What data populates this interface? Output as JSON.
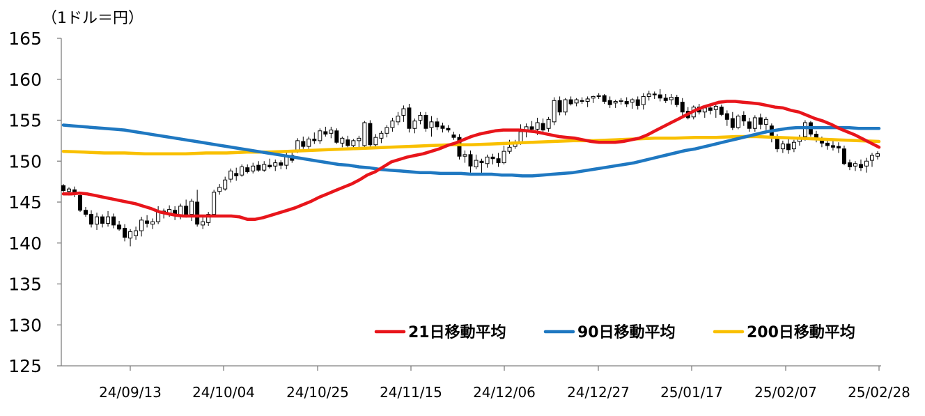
{
  "chart_data": {
    "type": "line",
    "unit_label": "（1ドル＝円）",
    "ylim": [
      125,
      165
    ],
    "yticks": [
      125,
      130,
      135,
      140,
      145,
      150,
      155,
      160,
      165
    ],
    "xlabels": [
      "24/09/13",
      "24/10/04",
      "24/10/25",
      "24/11/15",
      "24/12/06",
      "24/12/27",
      "25/01/17",
      "25/02/07",
      "25/02/28"
    ],
    "series": [
      {
        "name": "21日移動平均",
        "color": "#e8151b",
        "values": [
          146.0,
          146.0,
          146.1,
          146.0,
          145.8,
          145.6,
          145.4,
          145.2,
          145.0,
          144.8,
          144.5,
          144.2,
          143.8,
          143.6,
          143.4,
          143.3,
          143.3,
          143.3,
          143.3,
          143.3,
          143.3,
          143.3,
          143.2,
          142.9,
          142.9,
          143.1,
          143.4,
          143.7,
          144.0,
          144.3,
          144.7,
          145.1,
          145.6,
          146.0,
          146.4,
          146.8,
          147.2,
          147.7,
          148.3,
          148.7,
          149.3,
          149.9,
          150.2,
          150.5,
          150.7,
          150.9,
          151.2,
          151.5,
          151.9,
          152.2,
          152.6,
          153.0,
          153.3,
          153.5,
          153.7,
          153.8,
          153.8,
          153.8,
          153.7,
          153.6,
          153.4,
          153.2,
          153.0,
          152.9,
          152.8,
          152.6,
          152.4,
          152.3,
          152.3,
          152.3,
          152.4,
          152.6,
          152.8,
          153.2,
          153.7,
          154.2,
          154.7,
          155.2,
          155.7,
          156.2,
          156.6,
          156.9,
          157.2,
          157.3,
          157.3,
          157.2,
          157.1,
          157.0,
          156.8,
          156.6,
          156.5,
          156.2,
          156.0,
          155.6,
          155.2,
          154.9,
          154.5,
          154.0,
          153.6,
          153.2,
          152.7,
          152.2,
          151.7
        ]
      },
      {
        "name": "90日移動平均",
        "color": "#1f78c1",
        "values": [
          154.4,
          154.3,
          154.2,
          154.1,
          154.0,
          153.9,
          153.8,
          153.6,
          153.4,
          153.2,
          153.0,
          152.8,
          152.6,
          152.4,
          152.2,
          152.0,
          151.8,
          151.6,
          151.4,
          151.2,
          151.0,
          150.8,
          150.6,
          150.4,
          150.2,
          150.0,
          149.8,
          149.6,
          149.5,
          149.3,
          149.2,
          149.0,
          148.9,
          148.8,
          148.7,
          148.6,
          148.6,
          148.5,
          148.5,
          148.5,
          148.4,
          148.4,
          148.4,
          148.3,
          148.3,
          148.2,
          148.2,
          148.3,
          148.4,
          148.5,
          148.6,
          148.8,
          149.0,
          149.2,
          149.4,
          149.6,
          149.8,
          150.1,
          150.4,
          150.7,
          151.0,
          151.3,
          151.5,
          151.8,
          152.1,
          152.4,
          152.7,
          153.0,
          153.3,
          153.6,
          153.8,
          154.0,
          154.1,
          154.1,
          154.1,
          154.1,
          154.1,
          154.1,
          154.0,
          154.0,
          154.0
        ]
      },
      {
        "name": "200日移動平均",
        "color": "#f9c000",
        "values": [
          151.2,
          151.1,
          151.0,
          151.0,
          150.9,
          150.9,
          150.9,
          151.0,
          151.0,
          151.1,
          151.1,
          151.2,
          151.3,
          151.4,
          151.5,
          151.6,
          151.7,
          151.8,
          151.9,
          152.0,
          152.0,
          152.1,
          152.2,
          152.3,
          152.4,
          152.5,
          152.5,
          152.6,
          152.7,
          152.8,
          152.8,
          152.9,
          152.9,
          153.0,
          153.0,
          152.9,
          152.8,
          152.7,
          152.6,
          152.5,
          152.4
        ]
      }
    ],
    "candles": [
      [
        147.0,
        147.2,
        146.2,
        146.4
      ],
      [
        146.3,
        146.8,
        145.8,
        146.6
      ],
      [
        146.5,
        146.9,
        145.6,
        146.0
      ],
      [
        145.8,
        146.1,
        143.8,
        144.0
      ],
      [
        144.0,
        144.4,
        143.2,
        143.5
      ],
      [
        143.5,
        144.0,
        141.9,
        142.3
      ],
      [
        142.3,
        143.7,
        141.6,
        143.2
      ],
      [
        143.2,
        143.5,
        141.9,
        142.4
      ],
      [
        142.4,
        143.9,
        142.0,
        143.2
      ],
      [
        143.2,
        143.6,
        141.8,
        142.2
      ],
      [
        142.2,
        142.7,
        141.5,
        141.7
      ],
      [
        141.8,
        142.3,
        140.2,
        140.7
      ],
      [
        140.6,
        141.7,
        139.6,
        141.4
      ],
      [
        140.9,
        142.0,
        140.4,
        141.5
      ],
      [
        141.5,
        143.2,
        140.8,
        142.8
      ],
      [
        142.7,
        143.4,
        141.9,
        142.4
      ],
      [
        142.3,
        143.0,
        141.7,
        142.6
      ],
      [
        142.6,
        144.5,
        142.3,
        143.9
      ],
      [
        143.9,
        144.2,
        143.0,
        143.6
      ],
      [
        143.6,
        144.6,
        143.2,
        144.1
      ],
      [
        144.0,
        144.5,
        142.8,
        143.3
      ],
      [
        143.3,
        144.8,
        142.9,
        144.5
      ],
      [
        144.5,
        145.3,
        143.1,
        143.5
      ],
      [
        143.5,
        145.4,
        142.7,
        145.1
      ],
      [
        145.0,
        146.5,
        142.0,
        142.3
      ],
      [
        142.2,
        143.2,
        141.7,
        142.6
      ],
      [
        142.5,
        143.8,
        142.1,
        143.5
      ],
      [
        143.5,
        146.5,
        143.3,
        146.2
      ],
      [
        146.3,
        147.2,
        145.9,
        146.8
      ],
      [
        146.6,
        148.1,
        146.4,
        147.7
      ],
      [
        147.8,
        149.1,
        147.4,
        148.8
      ],
      [
        148.5,
        149.2,
        147.6,
        148.2
      ],
      [
        148.3,
        149.6,
        148.1,
        149.3
      ],
      [
        149.2,
        149.6,
        148.5,
        148.7
      ],
      [
        148.8,
        149.8,
        148.5,
        149.4
      ],
      [
        149.5,
        150.0,
        148.7,
        148.9
      ],
      [
        148.9,
        150.0,
        148.7,
        149.6
      ],
      [
        149.5,
        150.3,
        149.1,
        149.3
      ],
      [
        149.4,
        150.2,
        148.8,
        149.8
      ],
      [
        149.8,
        150.1,
        149.0,
        149.5
      ],
      [
        149.5,
        151.1,
        149.0,
        150.7
      ],
      [
        150.7,
        151.3,
        149.8,
        150.1
      ],
      [
        151.3,
        152.8,
        151.0,
        152.5
      ],
      [
        152.4,
        153.0,
        151.5,
        151.8
      ],
      [
        151.8,
        153.0,
        151.5,
        152.7
      ],
      [
        152.7,
        153.5,
        152.1,
        152.5
      ],
      [
        152.5,
        154.0,
        152.1,
        153.7
      ],
      [
        153.6,
        154.2,
        153.0,
        153.3
      ],
      [
        153.4,
        154.2,
        152.8,
        153.8
      ],
      [
        153.7,
        154.0,
        152.1,
        152.3
      ],
      [
        152.2,
        153.0,
        151.7,
        152.8
      ],
      [
        152.6,
        153.1,
        151.7,
        151.9
      ],
      [
        151.9,
        152.7,
        151.4,
        152.5
      ],
      [
        152.5,
        153.1,
        151.6,
        152.8
      ],
      [
        151.9,
        154.9,
        151.4,
        154.7
      ],
      [
        154.6,
        155.0,
        151.7,
        152.0
      ],
      [
        152.0,
        153.3,
        151.6,
        152.9
      ],
      [
        152.8,
        153.7,
        152.2,
        153.4
      ],
      [
        153.4,
        154.4,
        152.9,
        154.1
      ],
      [
        154.1,
        155.3,
        153.6,
        154.9
      ],
      [
        154.8,
        156.0,
        154.4,
        155.5
      ],
      [
        155.6,
        156.8,
        154.8,
        156.4
      ],
      [
        156.5,
        157.0,
        153.5,
        154.0
      ],
      [
        154.0,
        155.2,
        153.4,
        154.9
      ],
      [
        155.0,
        156.0,
        154.5,
        155.6
      ],
      [
        155.6,
        156.0,
        153.6,
        154.0
      ],
      [
        154.1,
        155.5,
        153.0,
        154.8
      ],
      [
        154.8,
        155.3,
        153.8,
        154.2
      ],
      [
        154.3,
        154.7,
        153.5,
        154.0
      ],
      [
        154.0,
        154.4,
        153.5,
        153.8
      ],
      [
        153.2,
        153.6,
        152.6,
        152.9
      ],
      [
        152.9,
        153.3,
        150.2,
        150.6
      ],
      [
        150.6,
        151.3,
        149.8,
        150.8
      ],
      [
        150.8,
        151.3,
        148.6,
        149.4
      ],
      [
        149.3,
        150.8,
        149.0,
        150.1
      ],
      [
        150.0,
        150.3,
        148.3,
        149.8
      ],
      [
        149.7,
        150.8,
        149.2,
        150.5
      ],
      [
        150.5,
        150.9,
        149.6,
        150.3
      ],
      [
        150.3,
        151.0,
        149.3,
        149.8
      ],
      [
        149.8,
        151.9,
        149.6,
        151.2
      ],
      [
        151.2,
        152.6,
        150.9,
        151.7
      ],
      [
        151.8,
        152.6,
        151.5,
        152.3
      ],
      [
        152.3,
        154.5,
        152.0,
        153.6
      ],
      [
        153.6,
        154.6,
        152.9,
        154.2
      ],
      [
        154.2,
        154.9,
        153.5,
        153.9
      ],
      [
        153.9,
        155.3,
        153.2,
        154.7
      ],
      [
        154.6,
        155.2,
        153.4,
        153.8
      ],
      [
        154.0,
        155.4,
        153.6,
        155.1
      ],
      [
        154.8,
        157.8,
        154.4,
        157.4
      ],
      [
        157.4,
        157.9,
        155.6,
        156.0
      ],
      [
        156.0,
        157.7,
        155.6,
        157.5
      ],
      [
        157.5,
        157.9,
        156.8,
        157.0
      ],
      [
        157.1,
        157.7,
        156.7,
        157.5
      ],
      [
        157.4,
        157.8,
        157.0,
        157.3
      ],
      [
        157.3,
        157.9,
        156.6,
        157.6
      ],
      [
        157.7,
        158.0,
        157.1,
        157.9
      ],
      [
        158.0,
        158.3,
        157.6,
        158.0
      ],
      [
        158.0,
        158.2,
        157.0,
        157.3
      ],
      [
        157.4,
        157.9,
        156.5,
        156.9
      ],
      [
        157.1,
        157.5,
        156.5,
        157.3
      ],
      [
        157.4,
        157.7,
        156.9,
        157.4
      ],
      [
        157.3,
        157.8,
        156.6,
        157.0
      ],
      [
        157.2,
        157.7,
        156.4,
        157.5
      ],
      [
        157.5,
        157.9,
        156.3,
        156.8
      ],
      [
        156.9,
        158.3,
        156.3,
        157.9
      ],
      [
        157.9,
        158.6,
        157.4,
        158.2
      ],
      [
        158.2,
        158.5,
        157.6,
        158.1
      ],
      [
        158.1,
        158.8,
        157.3,
        157.7
      ],
      [
        157.7,
        158.2,
        157.1,
        157.4
      ],
      [
        157.5,
        158.2,
        156.9,
        157.8
      ],
      [
        157.8,
        158.1,
        156.6,
        156.9
      ],
      [
        157.2,
        157.7,
        155.5,
        156.0
      ],
      [
        156.1,
        156.6,
        155.1,
        155.3
      ],
      [
        155.4,
        156.8,
        155.1,
        156.6
      ],
      [
        156.6,
        157.0,
        155.7,
        156.0
      ],
      [
        156.0,
        156.8,
        155.3,
        156.5
      ],
      [
        156.5,
        157.0,
        155.7,
        156.2
      ],
      [
        156.3,
        156.9,
        155.3,
        156.7
      ],
      [
        156.6,
        156.9,
        155.5,
        155.7
      ],
      [
        155.8,
        156.2,
        154.3,
        155.1
      ],
      [
        155.2,
        156.0,
        153.8,
        154.1
      ],
      [
        154.1,
        155.7,
        153.9,
        155.5
      ],
      [
        155.6,
        156.1,
        154.3,
        154.9
      ],
      [
        154.8,
        155.3,
        153.6,
        154.0
      ],
      [
        154.0,
        155.6,
        153.6,
        155.3
      ],
      [
        155.3,
        155.8,
        153.9,
        154.5
      ],
      [
        154.5,
        155.4,
        153.8,
        155.1
      ],
      [
        154.3,
        154.6,
        152.3,
        152.8
      ],
      [
        152.8,
        153.3,
        151.1,
        151.5
      ],
      [
        151.5,
        152.5,
        151.0,
        152.1
      ],
      [
        152.1,
        152.8,
        150.9,
        151.4
      ],
      [
        151.5,
        152.6,
        151.1,
        152.3
      ],
      [
        152.4,
        153.2,
        151.9,
        152.8
      ],
      [
        153.0,
        155.0,
        152.5,
        154.7
      ],
      [
        154.7,
        154.9,
        153.0,
        153.3
      ],
      [
        153.3,
        153.7,
        152.3,
        152.7
      ],
      [
        152.6,
        153.0,
        151.7,
        152.2
      ],
      [
        152.2,
        152.6,
        151.4,
        151.9
      ],
      [
        151.9,
        152.5,
        151.3,
        151.7
      ],
      [
        151.8,
        152.3,
        151.0,
        151.6
      ],
      [
        151.5,
        151.9,
        149.5,
        149.7
      ],
      [
        149.8,
        150.2,
        148.9,
        149.3
      ],
      [
        149.4,
        150.0,
        148.8,
        149.7
      ],
      [
        149.6,
        150.2,
        148.8,
        149.2
      ],
      [
        149.4,
        150.4,
        148.6,
        150.0
      ],
      [
        150.1,
        151.0,
        149.3,
        150.7
      ],
      [
        150.6,
        151.2,
        150.2,
        150.9
      ]
    ]
  }
}
